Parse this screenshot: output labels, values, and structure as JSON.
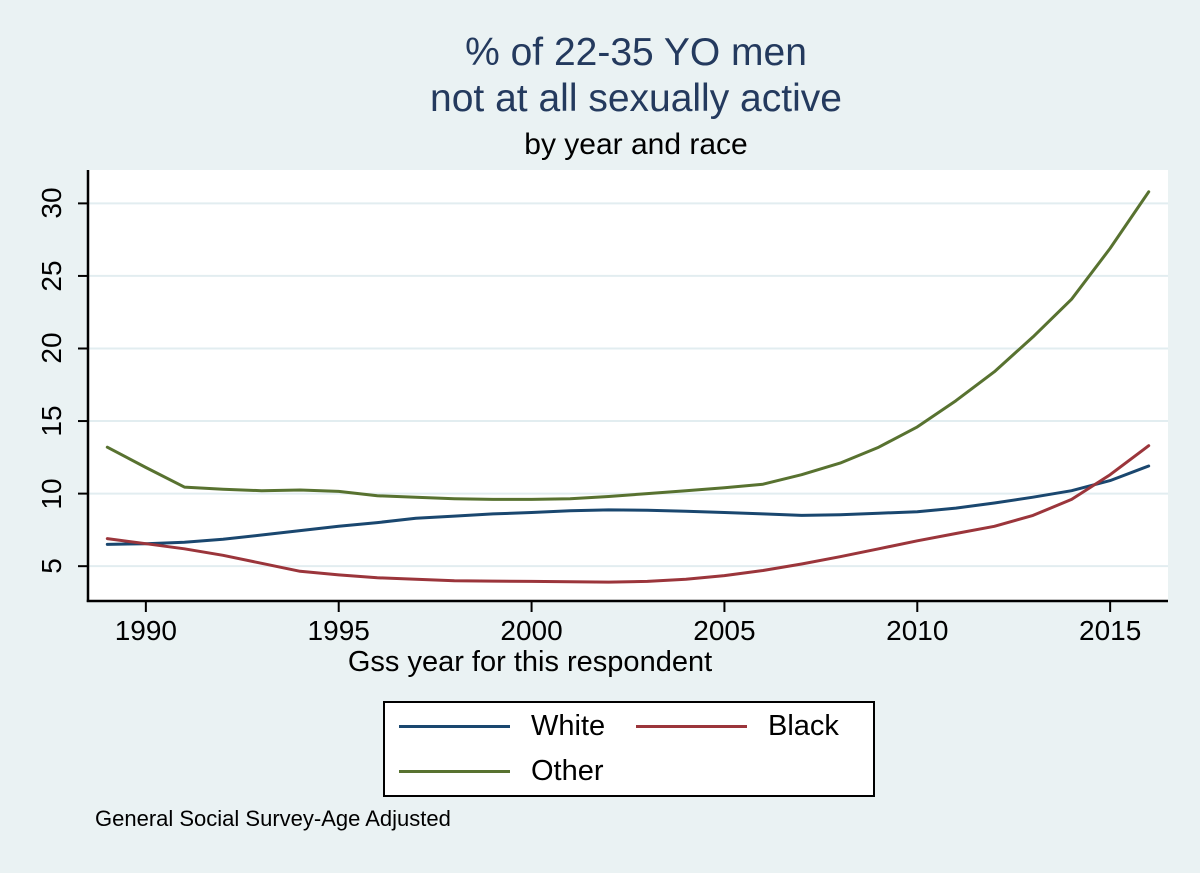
{
  "title": {
    "line1": "% of 22-35 YO men",
    "line2": "not at all sexually active",
    "subtitle": "by year and race"
  },
  "chart_data": {
    "type": "line",
    "title": "% of 22-35 YO men not at all sexually active",
    "subtitle": "by year and race",
    "xlabel": "Gss year for this respondent",
    "ylabel": "",
    "note": "General Social Survey-Age Adjusted",
    "x": [
      1989,
      1990,
      1991,
      1992,
      1993,
      1994,
      1995,
      1996,
      1997,
      1998,
      1999,
      2000,
      2001,
      2002,
      2003,
      2004,
      2005,
      2006,
      2007,
      2008,
      2009,
      2010,
      2011,
      2012,
      2013,
      2014,
      2015,
      2016
    ],
    "series": [
      {
        "name": "White",
        "color": "#1a476f",
        "values": [
          6.5,
          6.55,
          6.65,
          6.85,
          7.15,
          7.45,
          7.75,
          8.0,
          8.3,
          8.45,
          8.6,
          8.7,
          8.82,
          8.88,
          8.85,
          8.78,
          8.7,
          8.6,
          8.5,
          8.55,
          8.65,
          8.75,
          9.0,
          9.35,
          9.75,
          10.2,
          10.9,
          11.9
        ]
      },
      {
        "name": "Black",
        "color": "#9b353b",
        "values": [
          6.9,
          6.55,
          6.2,
          5.75,
          5.2,
          4.65,
          4.4,
          4.2,
          4.1,
          4.0,
          3.97,
          3.95,
          3.92,
          3.9,
          3.95,
          4.1,
          4.35,
          4.7,
          5.15,
          5.65,
          6.2,
          6.75,
          7.25,
          7.75,
          8.5,
          9.6,
          11.3,
          13.3
        ]
      },
      {
        "name": "Other",
        "color": "#587230",
        "values": [
          13.2,
          11.8,
          10.45,
          10.3,
          10.2,
          10.25,
          10.15,
          9.85,
          9.75,
          9.65,
          9.6,
          9.6,
          9.65,
          9.8,
          10.0,
          10.2,
          10.4,
          10.65,
          11.3,
          12.1,
          13.2,
          14.6,
          16.4,
          18.4,
          20.8,
          23.4,
          26.9,
          30.8
        ]
      }
    ],
    "x_ticks": [
      1990,
      1995,
      2000,
      2005,
      2010,
      2015
    ],
    "y_ticks": [
      5,
      10,
      15,
      20,
      25,
      30
    ],
    "x_domain": [
      1988.5,
      2016.5
    ],
    "y_domain": [
      2.6,
      32.3
    ],
    "grid": true,
    "legend_position": "bottom",
    "colors": {
      "background": "#eaf2f3",
      "plot_background": "#ffffff",
      "grid": "#e2edf0",
      "axis": "#000000",
      "title": "#243a5e"
    }
  }
}
